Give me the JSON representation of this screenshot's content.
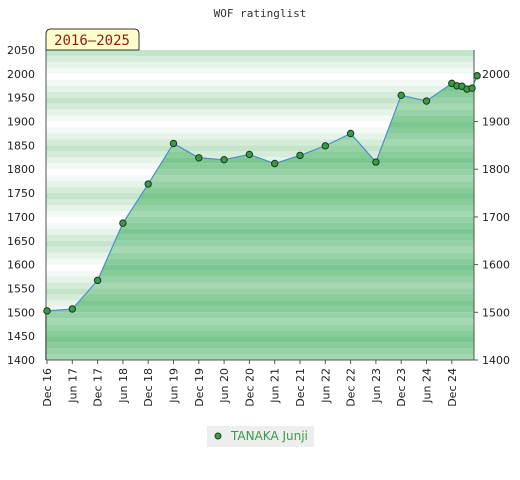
{
  "chart_data": {
    "type": "area",
    "title": "WOF ratinglist",
    "period_label": "2016–2025",
    "ylim": [
      1400,
      2050
    ],
    "left_ticks": [
      1400,
      1450,
      1500,
      1550,
      1600,
      1650,
      1700,
      1750,
      1800,
      1850,
      1900,
      1950,
      2000,
      2050
    ],
    "right_ticks": [
      1400,
      1500,
      1600,
      1700,
      1800,
      1900,
      2000
    ],
    "x_ticks": [
      "Dec 16",
      "Jun 17",
      "Dec 17",
      "Jun 18",
      "Dec 18",
      "Jun 19",
      "Dec 19",
      "Jun 20",
      "Dec 20",
      "Jun 21",
      "Dec 21",
      "Jun 22",
      "Dec 22",
      "Jun 23",
      "Dec 23",
      "Jun 24",
      "Dec 24"
    ],
    "series": [
      {
        "name": "TANAKA Junji",
        "color": "#3a9a4a",
        "points": [
          {
            "x": 0,
            "y": 1503
          },
          {
            "x": 1,
            "y": 1507
          },
          {
            "x": 2,
            "y": 1567
          },
          {
            "x": 3,
            "y": 1687
          },
          {
            "x": 4,
            "y": 1769
          },
          {
            "x": 5,
            "y": 1854
          },
          {
            "x": 6,
            "y": 1824
          },
          {
            "x": 7,
            "y": 1820
          },
          {
            "x": 8,
            "y": 1831
          },
          {
            "x": 9,
            "y": 1812
          },
          {
            "x": 10,
            "y": 1829
          },
          {
            "x": 11,
            "y": 1849
          },
          {
            "x": 12,
            "y": 1875
          },
          {
            "x": 13,
            "y": 1815
          },
          {
            "x": 14,
            "y": 1955
          },
          {
            "x": 15,
            "y": 1943
          },
          {
            "x": 16,
            "y": 1980
          },
          {
            "x": 16.2,
            "y": 1975
          },
          {
            "x": 16.4,
            "y": 1974
          },
          {
            "x": 16.6,
            "y": 1968
          },
          {
            "x": 16.8,
            "y": 1970
          },
          {
            "x": 17,
            "y": 1996
          }
        ]
      }
    ],
    "grid": true
  }
}
